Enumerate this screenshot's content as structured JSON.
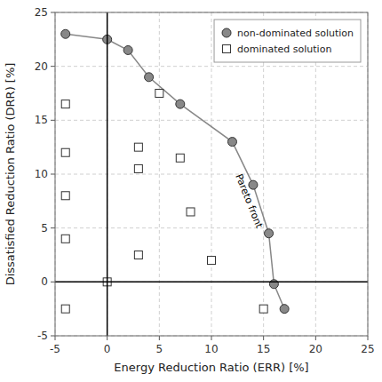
{
  "chart_data": {
    "type": "scatter",
    "x_label": "Energy Reduction Ratio (ERR) [%]",
    "y_label": "Dissatisfied Reduction Ratio (DRR) [%]",
    "xlim": [
      -5,
      25
    ],
    "ylim": [
      -5,
      25
    ],
    "xticks": [
      -5,
      0,
      5,
      10,
      15,
      20,
      25
    ],
    "yticks": [
      -5,
      0,
      5,
      10,
      15,
      20,
      25
    ],
    "grid": true,
    "legend": "upper right",
    "vlines": [
      0
    ],
    "hlines": [
      0
    ],
    "series": [
      {
        "name": "non-dominated solution",
        "type": "line",
        "marker": "circle",
        "color": "#888888",
        "x": [
          -4,
          0,
          2,
          4,
          7,
          12,
          14,
          15.5,
          16,
          17
        ],
        "values": [
          23,
          22.5,
          21.5,
          19,
          16.5,
          13,
          9,
          4.5,
          -0.2,
          -2.5
        ]
      },
      {
        "name": "dominated solution",
        "type": "scatter",
        "marker": "square",
        "color": "white",
        "x": [
          -4,
          -4,
          -4,
          -4,
          -4,
          0,
          3,
          3,
          3,
          5,
          7,
          8,
          10,
          15
        ],
        "values": [
          -2.5,
          4,
          8,
          12,
          16.5,
          0,
          12.5,
          10.5,
          2.5,
          17.5,
          11.5,
          6.5,
          2,
          -2.5
        ]
      }
    ],
    "annotations": [
      {
        "text": "Pareto front",
        "x": 13.6,
        "y": 7.5
      }
    ]
  }
}
